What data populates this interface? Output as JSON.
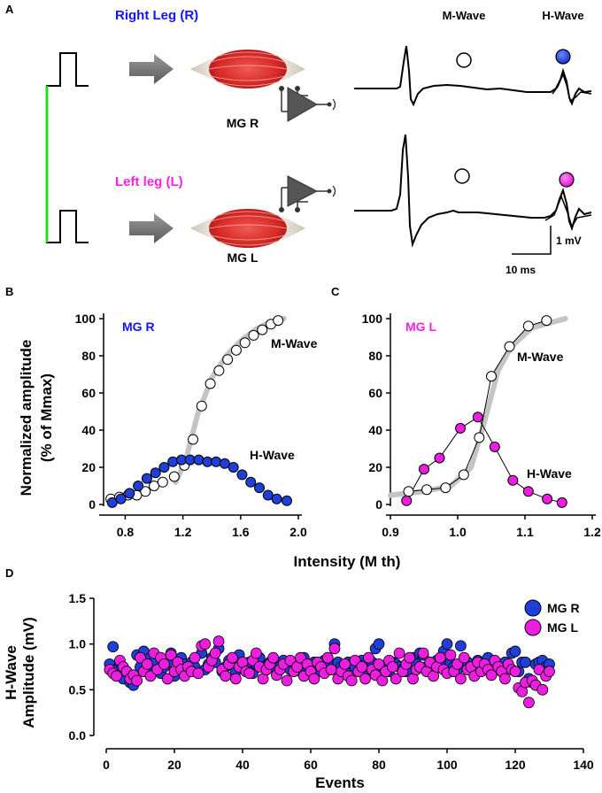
{
  "panel_labels": {
    "a": "A",
    "b": "B",
    "c": "C",
    "d": "D"
  },
  "panel_a": {
    "right_leg_label": "Right Leg (R)",
    "left_leg_label": "Left leg (L)",
    "muscle_r_label": "MG R",
    "muscle_l_label": "MG L",
    "mwave_header": "M-Wave",
    "hwave_header": "H-Wave",
    "scale_voltage": "1 mV",
    "scale_time": "10 ms"
  },
  "colors": {
    "mg_r": "#1f3fd8",
    "mg_l": "#ee1ee0",
    "right_leg_text": "#1414ff",
    "left_leg_text": "#ff1fe8",
    "trigger_line": "#22dd22",
    "fit_curve": "#c4c4c4",
    "muscle": "#d8322e"
  },
  "shared": {
    "y_label_line1": "Normalized amplitude",
    "y_label_line2": "(% of Mmax)",
    "x_label": "Intensity (M th)"
  },
  "chart_data": [
    {
      "id": "B",
      "type": "scatter",
      "title": "MG R",
      "xlim": [
        0.65,
        2.0
      ],
      "ylim": [
        0,
        100
      ],
      "xticks": [
        0.8,
        1.2,
        1.6,
        2.0
      ],
      "xtick_labels": [
        "0.8",
        "1.2",
        "1.6",
        "2.0"
      ],
      "yticks": [
        0,
        20,
        40,
        60,
        80,
        100
      ],
      "ytick_labels": [
        "0",
        "20",
        "40",
        "60",
        "80",
        "100"
      ],
      "series": [
        {
          "name": "M-Wave",
          "marker": "open",
          "x": [
            0.7,
            0.76,
            0.82,
            0.88,
            0.94,
            1.0,
            1.06,
            1.14,
            1.21,
            1.27,
            1.33,
            1.39,
            1.45,
            1.51,
            1.57,
            1.63,
            1.69,
            1.75,
            1.81,
            1.86
          ],
          "y": [
            3,
            4,
            5,
            5,
            7,
            10,
            12,
            15,
            21,
            35,
            53,
            65,
            72,
            78,
            83,
            87,
            91,
            94,
            97,
            99
          ]
        },
        {
          "name": "H-Wave",
          "marker": "filled",
          "x": [
            0.71,
            0.77,
            0.83,
            0.89,
            0.95,
            1.01,
            1.07,
            1.13,
            1.19,
            1.25,
            1.31,
            1.37,
            1.43,
            1.49,
            1.55,
            1.61,
            1.67,
            1.73,
            1.79,
            1.85,
            1.92
          ],
          "y": [
            1,
            3,
            6,
            10,
            14,
            17,
            20,
            23,
            24,
            24,
            24,
            23,
            23,
            22,
            20,
            16,
            12,
            9,
            5,
            3,
            2
          ]
        }
      ],
      "fit_x": [
        1.15,
        1.22,
        1.3,
        1.4,
        1.5,
        1.6,
        1.7,
        1.8,
        1.9
      ],
      "fit_y": [
        12,
        24,
        48,
        68,
        80,
        88,
        94,
        98,
        100
      ],
      "annotations": {
        "mwave": "M-Wave",
        "hwave": "H-Wave"
      }
    },
    {
      "id": "C",
      "type": "scatter",
      "title": "MG L",
      "xlim": [
        0.9,
        1.2
      ],
      "ylim": [
        0,
        100
      ],
      "xticks": [
        0.9,
        1.0,
        1.1,
        1.2
      ],
      "xtick_labels": [
        "0.9",
        "1.0",
        "1.1",
        "1.2"
      ],
      "yticks": [
        0,
        20,
        40,
        60,
        80,
        100
      ],
      "ytick_labels": [
        "0",
        "20",
        "40",
        "60",
        "80",
        "100"
      ],
      "series": [
        {
          "name": "M-Wave",
          "marker": "open",
          "x": [
            0.927,
            0.954,
            0.982,
            1.009,
            1.032,
            1.05,
            1.077,
            1.105,
            1.132
          ],
          "y": [
            7,
            8,
            9,
            16,
            36,
            69,
            85,
            96,
            99
          ]
        },
        {
          "name": "H-Wave",
          "marker": "filled",
          "x": [
            0.924,
            0.95,
            0.973,
            1.004,
            1.03,
            1.055,
            1.082,
            1.105,
            1.133,
            1.155
          ],
          "y": [
            2,
            19,
            25,
            41,
            47,
            31,
            13,
            7,
            3,
            1
          ]
        }
      ],
      "fit_x": [
        0.9,
        0.95,
        0.99,
        1.02,
        1.04,
        1.06,
        1.08,
        1.11,
        1.16
      ],
      "fit_y": [
        5,
        7,
        10,
        20,
        45,
        72,
        85,
        95,
        100
      ],
      "annotations": {
        "mwave": "M-Wave",
        "hwave": "H-Wave"
      }
    },
    {
      "id": "D",
      "type": "scatter",
      "ylabel_line1": "H-Wave",
      "ylabel_line2": "Amplitude (mV)",
      "xlabel": "Events",
      "xlim": [
        0,
        140
      ],
      "ylim": [
        0,
        1.5
      ],
      "xticks": [
        0,
        20,
        40,
        60,
        80,
        100,
        120,
        140
      ],
      "xtick_labels": [
        "0",
        "20",
        "40",
        "60",
        "80",
        "100",
        "120",
        "140"
      ],
      "yticks": [
        0,
        0.5,
        1.0,
        1.5
      ],
      "ytick_labels": [
        "0.0",
        "0.5",
        "1.0",
        "1.5"
      ],
      "legend": [
        "MG R",
        "MG L"
      ],
      "series": [
        {
          "name": "MG R",
          "values": [
            0.78,
            0.97,
            0.72,
            0.8,
            0.62,
            0.7,
            0.58,
            0.55,
            0.88,
            0.75,
            0.92,
            0.7,
            0.85,
            0.8,
            0.72,
            0.68,
            0.75,
            0.8,
            0.9,
            0.65,
            0.72,
            0.85,
            0.78,
            0.7,
            0.8,
            0.75,
            0.68,
            0.9,
            0.72,
            0.78,
            0.85,
            0.8,
            0.95,
            0.7,
            0.75,
            0.82,
            0.78,
            0.7,
            0.88,
            0.75,
            0.72,
            0.8,
            0.68,
            0.78,
            0.85,
            0.75,
            0.72,
            0.8,
            0.78,
            0.7,
            0.75,
            0.82,
            0.78,
            0.72,
            0.8,
            0.75,
            0.7,
            0.85,
            0.78,
            0.72,
            0.8,
            0.76,
            0.7,
            0.82,
            0.78,
            0.72,
            1.0,
            0.8,
            0.75,
            0.72,
            0.8,
            0.78,
            0.75,
            0.7,
            0.82,
            0.78,
            0.72,
            0.8,
            0.95,
            1.0,
            0.75,
            0.72,
            0.7,
            0.8,
            0.78,
            0.75,
            0.72,
            0.7,
            0.8,
            0.85,
            0.78,
            0.9,
            0.88,
            0.75,
            0.8,
            0.7,
            0.82,
            0.78,
            0.92,
            1.0,
            0.8,
            0.75,
            0.72,
            0.98,
            0.78,
            0.8,
            0.75,
            0.72,
            0.82,
            0.8,
            0.78,
            0.85,
            0.75,
            0.72,
            0.78,
            0.7,
            0.8,
            0.75,
            0.9,
            0.92,
            0.7,
            0.8,
            0.8,
            0.62,
            0.58,
            0.78,
            0.8,
            0.82,
            0.75,
            0.78
          ]
        },
        {
          "name": "MG L",
          "values": [
            0.72,
            0.68,
            0.65,
            0.82,
            0.75,
            0.7,
            0.62,
            0.66,
            0.6,
            0.85,
            0.7,
            0.78,
            0.65,
            0.9,
            0.72,
            0.85,
            0.78,
            0.62,
            0.88,
            0.7,
            0.8,
            0.72,
            0.65,
            0.75,
            0.7,
            0.85,
            0.68,
            0.98,
            1.0,
            0.75,
            0.82,
            0.9,
            1.03,
            0.72,
            0.65,
            0.78,
            0.85,
            0.62,
            0.75,
            0.8,
            0.7,
            0.68,
            0.82,
            0.9,
            0.75,
            0.62,
            0.72,
            0.78,
            0.85,
            0.66,
            0.72,
            0.78,
            0.6,
            0.82,
            0.7,
            0.75,
            0.85,
            0.65,
            0.78,
            0.7,
            0.62,
            0.8,
            0.75,
            0.68,
            0.85,
            0.72,
            0.95,
            0.62,
            0.7,
            0.78,
            0.65,
            0.6,
            0.82,
            0.7,
            0.75,
            0.62,
            0.85,
            0.72,
            0.66,
            0.78,
            0.6,
            0.7,
            0.82,
            0.75,
            0.62,
            0.9,
            0.7,
            0.78,
            0.85,
            0.62,
            0.72,
            0.75,
            0.9,
            0.7,
            0.8,
            0.65,
            0.75,
            0.85,
            0.72,
            0.68,
            0.88,
            0.7,
            0.78,
            0.62,
            0.85,
            0.72,
            0.75,
            0.65,
            0.8,
            0.7,
            0.78,
            0.72,
            0.66,
            0.82,
            0.75,
            0.7,
            0.62,
            0.78,
            0.72,
            0.7,
            0.52,
            0.48,
            0.58,
            0.36,
            0.6,
            0.55,
            0.72,
            0.5,
            0.65,
            0.7
          ]
        }
      ]
    }
  ]
}
